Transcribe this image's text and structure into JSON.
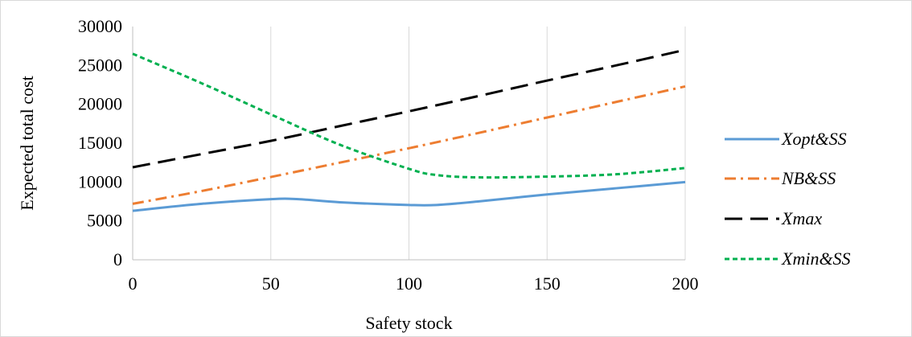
{
  "chart_data": {
    "type": "line",
    "title": "",
    "xlabel": "Safety stock",
    "ylabel": "Expected total cost",
    "xlim": [
      0,
      200
    ],
    "ylim": [
      0,
      30000
    ],
    "x_ticks": [
      0,
      50,
      100,
      150,
      200
    ],
    "y_ticks": [
      0,
      5000,
      10000,
      15000,
      20000,
      25000,
      30000
    ],
    "grid": "vertical",
    "legend_position": "right",
    "series": [
      {
        "name": "Xopt&SS",
        "color": "#5b9bd5",
        "line_style": "solid",
        "x": [
          0,
          25,
          50,
          60,
          75,
          100,
          110,
          125,
          150,
          175,
          200
        ],
        "y": [
          6300,
          7200,
          7800,
          7800,
          7400,
          7050,
          7050,
          7500,
          8400,
          9200,
          10000
        ]
      },
      {
        "name": "NB&SS",
        "color": "#ed7d31",
        "line_style": "dash-dot",
        "x": [
          0,
          25,
          50,
          75,
          100,
          125,
          150,
          175,
          200
        ],
        "y": [
          7200,
          8850,
          10650,
          12500,
          14350,
          16300,
          18300,
          20300,
          22300
        ]
      },
      {
        "name": "Xmax",
        "color": "#000000",
        "line_style": "long-dash",
        "x": [
          0,
          25,
          50,
          75,
          100,
          125,
          150,
          175,
          200
        ],
        "y": [
          11900,
          13600,
          15300,
          17200,
          19100,
          21050,
          23050,
          25000,
          27000
        ]
      },
      {
        "name": "Xmin&SS",
        "color": "#00b050",
        "line_style": "dotted",
        "x": [
          0,
          25,
          50,
          75,
          100,
          110,
          125,
          150,
          175,
          200
        ],
        "y": [
          26500,
          22700,
          18700,
          14800,
          11700,
          10900,
          10600,
          10700,
          11000,
          11800
        ]
      }
    ]
  }
}
